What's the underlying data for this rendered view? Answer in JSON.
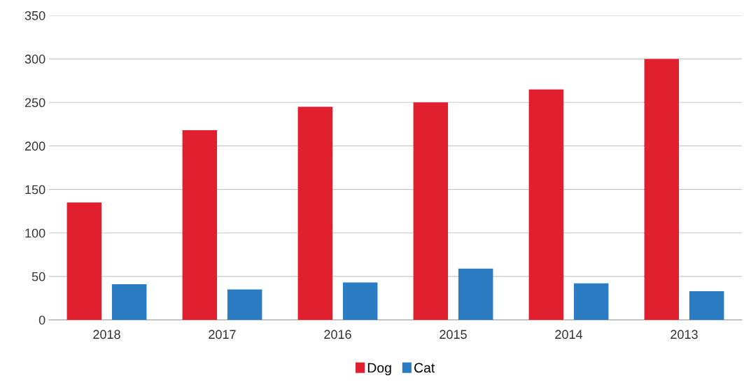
{
  "chart_data": {
    "type": "bar",
    "categories": [
      "2018",
      "2017",
      "2016",
      "2015",
      "2014",
      "2013"
    ],
    "series": [
      {
        "name": "Dog",
        "color": "#e0202e",
        "values": [
          135,
          218,
          245,
          250,
          265,
          300
        ]
      },
      {
        "name": "Cat",
        "color": "#2b7cc2",
        "values": [
          41,
          35,
          43,
          59,
          42,
          33
        ]
      }
    ],
    "ylim": [
      0,
      350
    ],
    "yticks": [
      0,
      50,
      100,
      150,
      200,
      250,
      300,
      350
    ],
    "grid": "y",
    "legend": "bottom"
  }
}
